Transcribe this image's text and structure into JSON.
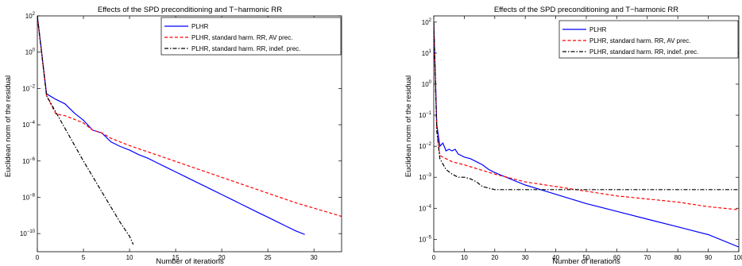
{
  "chart_data": [
    {
      "type": "line",
      "title": "Effects of the SPD preconditioning and T−harmonic RR",
      "xlabel": "Number of iterations",
      "ylabel": "Euclidean norm of the residual",
      "xlim": [
        0,
        33
      ],
      "ylim_log10": [
        -11,
        2
      ],
      "yscale": "log",
      "legend_position": "top-right",
      "xticks": [
        "0",
        "5",
        "10",
        "15",
        "20",
        "25",
        "30"
      ],
      "xtick_values": [
        0,
        5,
        10,
        15,
        20,
        25,
        30
      ],
      "yticks_exp": [
        "2",
        "0",
        "−2",
        "−4",
        "−6",
        "−8",
        "−10"
      ],
      "ytick_values": [
        2,
        0,
        -2,
        -4,
        -6,
        -8,
        -10
      ],
      "series": [
        {
          "name": "PLHR",
          "color": "#0000ff",
          "dash": "solid",
          "points": [
            [
              0,
              2.0
            ],
            [
              1,
              -2.3
            ],
            [
              2,
              -2.6
            ],
            [
              3,
              -2.85
            ],
            [
              4,
              -3.35
            ],
            [
              5,
              -3.75
            ],
            [
              6,
              -4.3
            ],
            [
              7,
              -4.45
            ],
            [
              8,
              -4.95
            ],
            [
              9,
              -5.2
            ],
            [
              10,
              -5.4
            ],
            [
              11,
              -5.65
            ],
            [
              12,
              -5.85
            ],
            [
              13,
              -6.1
            ],
            [
              14,
              -6.35
            ],
            [
              15,
              -6.6
            ],
            [
              16,
              -6.85
            ],
            [
              17,
              -7.1
            ],
            [
              18,
              -7.35
            ],
            [
              19,
              -7.6
            ],
            [
              20,
              -7.85
            ],
            [
              21,
              -8.1
            ],
            [
              22,
              -8.35
            ],
            [
              23,
              -8.6
            ],
            [
              24,
              -8.85
            ],
            [
              25,
              -9.1
            ],
            [
              26,
              -9.35
            ],
            [
              27,
              -9.6
            ],
            [
              28,
              -9.85
            ],
            [
              29,
              -10.05
            ]
          ]
        },
        {
          "name": "PLHR, standard harm. RR, AV prec.",
          "color": "#ff0000",
          "dash": "dashed",
          "points": [
            [
              0,
              2.0
            ],
            [
              1,
              -2.4
            ],
            [
              2,
              -3.4
            ],
            [
              3,
              -3.5
            ],
            [
              4,
              -3.7
            ],
            [
              5,
              -3.9
            ],
            [
              6,
              -4.3
            ],
            [
              7,
              -4.45
            ],
            [
              8,
              -4.75
            ],
            [
              9,
              -4.95
            ],
            [
              10,
              -5.15
            ],
            [
              12,
              -5.5
            ],
            [
              14,
              -5.85
            ],
            [
              16,
              -6.2
            ],
            [
              18,
              -6.55
            ],
            [
              20,
              -6.9
            ],
            [
              22,
              -7.25
            ],
            [
              24,
              -7.6
            ],
            [
              26,
              -7.95
            ],
            [
              28,
              -8.3
            ],
            [
              30,
              -8.6
            ],
            [
              32,
              -8.9
            ],
            [
              33,
              -9.05
            ]
          ]
        },
        {
          "name": "PLHR, standard harm. RR, indef. prec.",
          "color": "#000000",
          "dash": "dashdot",
          "points": [
            [
              0,
              2.0
            ],
            [
              1,
              -2.4
            ],
            [
              2,
              -3.3
            ],
            [
              3,
              -4.2
            ],
            [
              4,
              -5.1
            ],
            [
              5,
              -6.0
            ],
            [
              6,
              -6.85
            ],
            [
              7,
              -7.7
            ],
            [
              8,
              -8.55
            ],
            [
              9,
              -9.4
            ],
            [
              10,
              -10.15
            ],
            [
              10.4,
              -10.6
            ]
          ]
        }
      ]
    },
    {
      "type": "line",
      "title": "Effects of the SPD preconditioning and T−harmonic RR",
      "xlabel": "Number of iterations",
      "ylabel": "Euclidean norm of the residual",
      "xlim": [
        0,
        100
      ],
      "ylim_log10": [
        -5.4,
        2.2
      ],
      "yscale": "log",
      "legend_position": "top-right",
      "xticks": [
        "0",
        "10",
        "20",
        "30",
        "40",
        "50",
        "60",
        "70",
        "80",
        "90",
        "100"
      ],
      "xtick_values": [
        0,
        10,
        20,
        30,
        40,
        50,
        60,
        70,
        80,
        90,
        100
      ],
      "yticks_exp": [
        "2",
        "1",
        "0",
        "−1",
        "−2",
        "−3",
        "−4",
        "−5"
      ],
      "ytick_values": [
        2,
        1,
        0,
        -1,
        -2,
        -3,
        -4,
        -5
      ],
      "series": [
        {
          "name": "PLHR",
          "color": "#0000ff",
          "dash": "solid",
          "points": [
            [
              0,
              2.0
            ],
            [
              1,
              -1.3
            ],
            [
              2,
              -2.0
            ],
            [
              3,
              -1.9
            ],
            [
              4,
              -2.15
            ],
            [
              5,
              -2.1
            ],
            [
              6,
              -2.15
            ],
            [
              7,
              -2.1
            ],
            [
              8,
              -2.25
            ],
            [
              10,
              -2.35
            ],
            [
              12,
              -2.4
            ],
            [
              14,
              -2.5
            ],
            [
              16,
              -2.6
            ],
            [
              18,
              -2.75
            ],
            [
              20,
              -2.85
            ],
            [
              25,
              -3.05
            ],
            [
              30,
              -3.25
            ],
            [
              35,
              -3.4
            ],
            [
              40,
              -3.55
            ],
            [
              45,
              -3.7
            ],
            [
              50,
              -3.85
            ],
            [
              60,
              -4.1
            ],
            [
              70,
              -4.35
            ],
            [
              80,
              -4.6
            ],
            [
              90,
              -4.85
            ],
            [
              100,
              -5.25
            ]
          ]
        },
        {
          "name": "PLHR, standard harm. RR, AV prec.",
          "color": "#ff0000",
          "dash": "dashed",
          "points": [
            [
              0,
              2.0
            ],
            [
              1,
              -1.5
            ],
            [
              2,
              -2.3
            ],
            [
              4,
              -2.4
            ],
            [
              6,
              -2.5
            ],
            [
              8,
              -2.55
            ],
            [
              10,
              -2.6
            ],
            [
              15,
              -2.75
            ],
            [
              20,
              -2.9
            ],
            [
              30,
              -3.15
            ],
            [
              40,
              -3.3
            ],
            [
              50,
              -3.45
            ],
            [
              60,
              -3.6
            ],
            [
              70,
              -3.7
            ],
            [
              80,
              -3.8
            ],
            [
              90,
              -3.95
            ],
            [
              100,
              -4.05
            ]
          ]
        },
        {
          "name": "PLHR, standard harm. RR, indef. prec.",
          "color": "#000000",
          "dash": "dashdot",
          "points": [
            [
              0,
              2.0
            ],
            [
              1,
              -1.5
            ],
            [
              2,
              -2.4
            ],
            [
              4,
              -2.75
            ],
            [
              6,
              -2.9
            ],
            [
              8,
              -3.0
            ],
            [
              10,
              -3.0
            ],
            [
              12,
              -3.05
            ],
            [
              14,
              -3.15
            ],
            [
              16,
              -3.3
            ],
            [
              18,
              -3.35
            ],
            [
              20,
              -3.4
            ],
            [
              30,
              -3.4
            ],
            [
              50,
              -3.4
            ],
            [
              70,
              -3.4
            ],
            [
              100,
              -3.4
            ]
          ]
        }
      ]
    }
  ]
}
